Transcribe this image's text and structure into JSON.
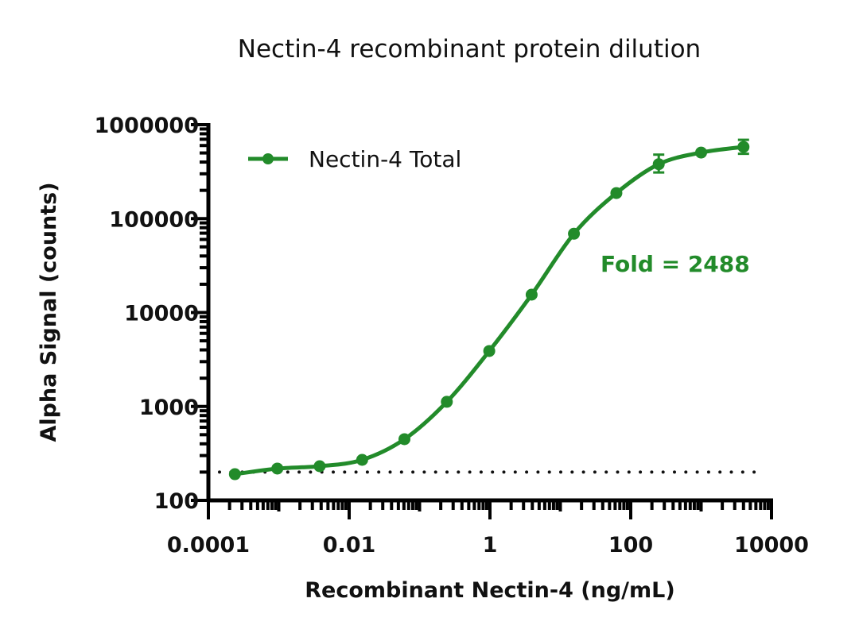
{
  "chart_data": {
    "type": "scatter",
    "title": "Nectin-4 recombinant protein dilution",
    "xlabel": "Recombinant Nectin-4 (ng/mL)",
    "ylabel": "Alpha Signal (counts)",
    "x_scale": "log",
    "y_scale": "log",
    "xlim": [
      0.0001,
      10000
    ],
    "ylim": [
      100,
      1000000
    ],
    "x_ticks": [
      0.0001,
      0.01,
      1,
      100,
      10000
    ],
    "x_tick_labels": [
      "0.0001",
      "0.01",
      "1",
      "100",
      "10000"
    ],
    "y_ticks": [
      100,
      1000,
      10000,
      100000,
      1000000
    ],
    "y_tick_labels": [
      "100",
      "1000",
      "10000",
      "100000",
      "1000000"
    ],
    "grid": false,
    "legend_position": "top-left",
    "series": [
      {
        "name": "Nectin-4 Total",
        "color": "#228B2A",
        "fit": "sigmoidal curve",
        "x": [
          0.000238,
          0.000954,
          0.00381,
          0.0153,
          0.061,
          0.244,
          0.977,
          3.91,
          15.6,
          62.5,
          250,
          1000,
          4000
        ],
        "y": [
          190,
          218,
          231,
          270,
          448,
          1120,
          3890,
          15500,
          69000,
          187000,
          380000,
          505000,
          580000
        ],
        "y_err_low": [
          null,
          null,
          null,
          null,
          null,
          null,
          null,
          null,
          null,
          null,
          310000,
          null,
          490000
        ],
        "y_err_high": [
          null,
          null,
          null,
          null,
          null,
          null,
          null,
          null,
          null,
          null,
          480000,
          null,
          690000
        ]
      }
    ],
    "reference_line": {
      "y": 200,
      "style": "dotted",
      "color": "#111111"
    },
    "annotations": [
      {
        "text": "Fold = 2488",
        "color": "#228B2A"
      }
    ]
  }
}
